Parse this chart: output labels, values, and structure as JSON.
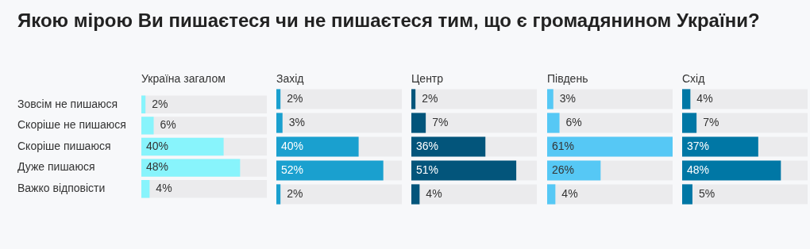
{
  "chart_data": [
    {
      "type": "bar",
      "orientation": "horizontal",
      "title": "Якою мірою Ви пишаєтеся чи не пишаєтеся тим, що є громадянином України?",
      "subtitle": "Україна загалом",
      "categories": [
        "Зовсім не пишаюся",
        "Скоріше не пишаюся",
        "Скоріше пишаюся",
        "Дуже пишаюся",
        "Важко відповісти"
      ],
      "values": [
        2,
        6,
        40,
        48,
        4
      ],
      "value_labels": [
        "2%",
        "6%",
        "40%",
        "48%",
        "4%"
      ],
      "color": "#88f4fc",
      "xlim": [
        0,
        61
      ],
      "tick_labels": "y"
    },
    {
      "type": "bar",
      "orientation": "horizontal",
      "subtitle": "Захід",
      "categories": [
        null,
        null,
        null,
        null,
        null
      ],
      "values": [
        2,
        3,
        40,
        52,
        2
      ],
      "value_labels": [
        "2%",
        "3%",
        "40%",
        "52%",
        "2%"
      ],
      "color": "#1aa0cf",
      "xlim": [
        0,
        61
      ],
      "tick_labels": false
    },
    {
      "type": "bar",
      "orientation": "horizontal",
      "subtitle": "Центр",
      "categories": [
        null,
        null,
        null,
        null,
        null
      ],
      "values": [
        2,
        7,
        36,
        51,
        4
      ],
      "value_labels": [
        "2%",
        "7%",
        "36%",
        "51%",
        "4%"
      ],
      "color": "#03557b",
      "xlim": [
        0,
        61
      ],
      "tick_labels": false
    },
    {
      "type": "bar",
      "orientation": "horizontal",
      "subtitle": "Південь",
      "categories": [
        null,
        null,
        null,
        null,
        null
      ],
      "values": [
        3,
        6,
        61,
        26,
        4
      ],
      "value_labels": [
        "3%",
        "6%",
        "61%",
        "26%",
        "4%"
      ],
      "color": "#56c8f5",
      "xlim": [
        0,
        61
      ],
      "tick_labels": false
    },
    {
      "type": "bar",
      "orientation": "horizontal",
      "subtitle": "Схід",
      "categories": [
        null,
        null,
        null,
        null,
        null
      ],
      "values": [
        4,
        7,
        37,
        48,
        5
      ],
      "value_labels": [
        "4%",
        "7%",
        "37%",
        "48%",
        "5%"
      ],
      "color": "#0077a5",
      "xlim": [
        0,
        61
      ],
      "tick_labels": false
    }
  ]
}
